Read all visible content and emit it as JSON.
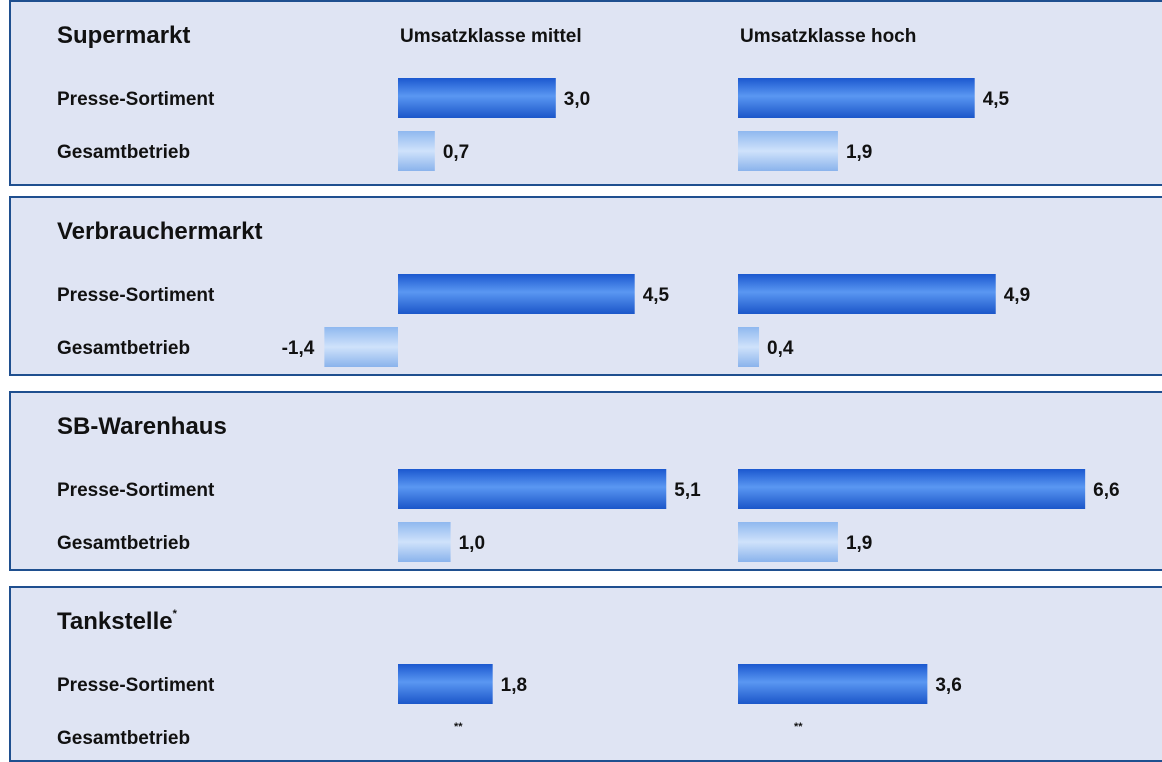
{
  "chart_data": {
    "type": "bar",
    "orientation": "horizontal",
    "columns": [
      "Umsatzklasse mittel",
      "Umsatzklasse hoch"
    ],
    "categories": [
      "Presse-Sortiment",
      "Gesamtbetrieb"
    ],
    "colors": [
      "#2a6be0",
      "#a6c7f5"
    ],
    "panels": [
      {
        "title": "Supermarkt",
        "values": [
          [
            3.0,
            4.5
          ],
          [
            0.7,
            1.9
          ]
        ],
        "value_labels": [
          [
            "3,0",
            "4,5"
          ],
          [
            "0,7",
            "1,9"
          ]
        ]
      },
      {
        "title": "Verbrauchermarkt",
        "values": [
          [
            4.5,
            4.9
          ],
          [
            -1.4,
            0.4
          ]
        ],
        "value_labels": [
          [
            "4,5",
            "4,9"
          ],
          [
            "-1,4",
            "0,4"
          ]
        ]
      },
      {
        "title": "SB-Warenhaus",
        "values": [
          [
            5.1,
            6.6
          ],
          [
            1.0,
            1.9
          ]
        ],
        "value_labels": [
          [
            "5,1",
            "6,6"
          ],
          [
            "1,0",
            "1,9"
          ]
        ]
      },
      {
        "title": "Tankstelle",
        "title_mark": "*",
        "values": [
          [
            1.8,
            3.6
          ],
          [
            null,
            null
          ]
        ],
        "value_labels": [
          [
            "1,8",
            "3,6"
          ],
          [
            "**",
            "**"
          ]
        ]
      }
    ]
  }
}
